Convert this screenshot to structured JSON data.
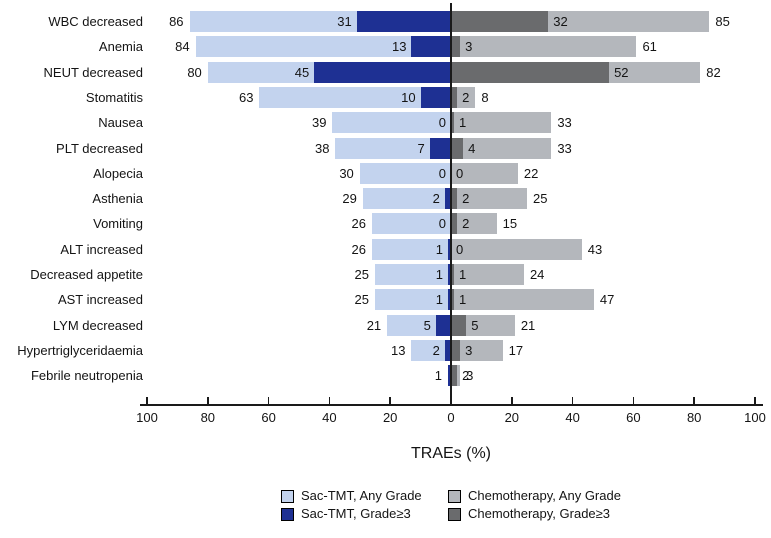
{
  "colors": {
    "sac_any": "#c3d3ee",
    "sac_g3": "#1e3093",
    "chemo_any": "#b4b7bc",
    "chemo_g3": "#6a6b6d",
    "axis": "#1a1a1a",
    "text": "#141414"
  },
  "chart_data": {
    "type": "bar",
    "variant": "diverging-tornado-overlay",
    "title": "",
    "xlabel": "TRAEs (%)",
    "xlim": [
      -100,
      100
    ],
    "grid": false,
    "legend_position": "bottom",
    "x_ticks": [
      -100,
      -80,
      -60,
      -40,
      -20,
      0,
      20,
      40,
      60,
      80,
      100
    ],
    "x_tick_labels": [
      "100",
      "80",
      "60",
      "40",
      "20",
      "0",
      "20",
      "40",
      "60",
      "80",
      "100"
    ],
    "categories": [
      "WBC decreased",
      "Anemia",
      "NEUT decreased",
      "Stomatitis",
      "Nausea",
      "PLT decreased",
      "Alopecia",
      "Asthenia",
      "Vomiting",
      "ALT increased",
      "Decreased appetite",
      "AST increased",
      "LYM decreased",
      "Hypertriglyceridaemia",
      "Febrile neutropenia"
    ],
    "series": [
      {
        "id": "sac_any",
        "name": "Sac-TMT, Any Grade",
        "side": "left",
        "layer": "base",
        "color_key": "sac_any",
        "values": [
          86,
          84,
          80,
          63,
          39,
          38,
          30,
          29,
          26,
          26,
          25,
          25,
          21,
          13,
          1
        ],
        "labels": [
          "86",
          "84",
          "80",
          "63",
          "39",
          "38",
          "30",
          "29",
          "26",
          "26",
          "25",
          "25",
          "21",
          "13",
          "1"
        ]
      },
      {
        "id": "sac_g3",
        "name": "Sac-TMT, Grade≥3",
        "side": "left",
        "layer": "overlay",
        "color_key": "sac_g3",
        "values": [
          31,
          13,
          45,
          10,
          0,
          7,
          0,
          2,
          0,
          1,
          1,
          1,
          5,
          2,
          1
        ],
        "labels": [
          "31",
          "13",
          "45",
          "10",
          "0",
          "7",
          "0",
          "2",
          "0",
          "1",
          "1",
          "1",
          "5",
          "2",
          ""
        ]
      },
      {
        "id": "chemo_g3",
        "name": "Chemotherapy, Grade≥3",
        "side": "right",
        "layer": "overlay",
        "color_key": "chemo_g3",
        "values": [
          32,
          3,
          52,
          2,
          1,
          4,
          0,
          2,
          2,
          0,
          1,
          1,
          5,
          3,
          2
        ],
        "labels": [
          "32",
          "3",
          "52",
          "2",
          "1",
          "4",
          "0",
          "2",
          "2",
          "0",
          "1",
          "1",
          "5",
          "3",
          "2"
        ]
      },
      {
        "id": "chemo_any",
        "name": "Chemotherapy, Any Grade",
        "side": "right",
        "layer": "base",
        "color_key": "chemo_any",
        "values": [
          85,
          61,
          82,
          8,
          33,
          33,
          22,
          25,
          15,
          43,
          24,
          47,
          21,
          17,
          3
        ],
        "labels": [
          "85",
          "61",
          "82",
          "8",
          "33",
          "33",
          "22",
          "25",
          "15",
          "43",
          "24",
          "47",
          "21",
          "17",
          "3"
        ]
      }
    ],
    "legend": [
      {
        "label": "Sac-TMT, Any Grade",
        "color_key": "sac_any",
        "col": 0,
        "row": 0
      },
      {
        "label": "Chemotherapy, Any Grade",
        "color_key": "chemo_any",
        "col": 1,
        "row": 0
      },
      {
        "label": "Sac-TMT, Grade≥3",
        "color_key": "sac_g3",
        "col": 0,
        "row": 1
      },
      {
        "label": "Chemotherapy, Grade≥3",
        "color_key": "chemo_g3",
        "col": 1,
        "row": 1
      }
    ]
  }
}
